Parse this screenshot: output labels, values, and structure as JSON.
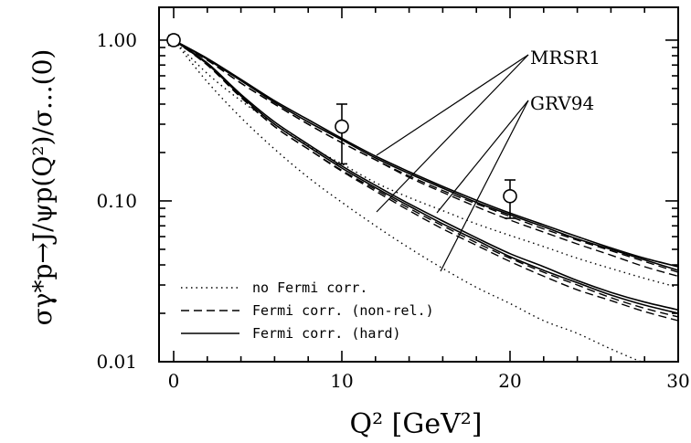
{
  "chart_data": {
    "type": "line",
    "xlabel": "Q² [GeV²]",
    "ylabel": "σγ*p→J/ψp(Q²)/σ...(0)",
    "xlim": [
      0,
      30
    ],
    "ylim": [
      0.01,
      1.6
    ],
    "yscale": "log",
    "xticks": [
      "0",
      "10",
      "20",
      "30"
    ],
    "yticks": [
      "0.01",
      "0.10",
      "1.00"
    ],
    "legend": {
      "placement": "bottom-left",
      "entries": [
        {
          "label": "no Fermi corr.",
          "style": "dotted"
        },
        {
          "label": "Fermi corr. (non-rel.)",
          "style": "dashed"
        },
        {
          "label": "Fermi corr. (hard)",
          "style": "solid"
        }
      ]
    },
    "annotations": [
      {
        "label": "MRSR1"
      },
      {
        "label": "GRV94"
      }
    ],
    "series": [
      {
        "group": "MRSR1",
        "style": "dotted",
        "x": [
          0,
          2,
          4,
          6,
          8,
          10,
          12,
          14,
          16,
          18,
          20,
          22,
          24,
          26,
          28,
          30
        ],
        "y": [
          1.0,
          0.62,
          0.42,
          0.3,
          0.22,
          0.17,
          0.13,
          0.105,
          0.087,
          0.072,
          0.061,
          0.052,
          0.044,
          0.038,
          0.033,
          0.029
        ]
      },
      {
        "group": "MRSR1",
        "style": "dashed",
        "x": [
          0,
          2,
          4,
          6,
          8,
          10,
          12,
          14,
          16,
          18,
          20,
          22,
          24,
          26,
          28,
          30
        ],
        "y": [
          1.0,
          0.75,
          0.54,
          0.4,
          0.3,
          0.23,
          0.18,
          0.143,
          0.116,
          0.096,
          0.08,
          0.067,
          0.057,
          0.049,
          0.042,
          0.036
        ]
      },
      {
        "group": "MRSR1",
        "style": "dashed",
        "x": [
          0,
          2,
          4,
          6,
          8,
          10,
          12,
          14,
          16,
          18,
          20,
          22,
          24,
          26,
          28,
          30
        ],
        "y": [
          1.0,
          0.75,
          0.54,
          0.4,
          0.3,
          0.23,
          0.18,
          0.14,
          0.113,
          0.092,
          0.076,
          0.064,
          0.054,
          0.046,
          0.039,
          0.034
        ]
      },
      {
        "group": "MRSR1",
        "style": "solid",
        "x": [
          0,
          2,
          4,
          6,
          8,
          10,
          12,
          14,
          16,
          18,
          20,
          22,
          24,
          26,
          28,
          30
        ],
        "y": [
          1.0,
          0.77,
          0.57,
          0.42,
          0.32,
          0.245,
          0.19,
          0.152,
          0.123,
          0.101,
          0.084,
          0.071,
          0.06,
          0.051,
          0.044,
          0.039
        ]
      },
      {
        "group": "MRSR1",
        "style": "solid",
        "x": [
          0,
          2,
          4,
          6,
          8,
          10,
          12,
          14,
          16,
          18,
          20,
          22,
          24,
          26,
          28,
          30
        ],
        "y": [
          1.0,
          0.76,
          0.56,
          0.41,
          0.31,
          0.24,
          0.185,
          0.148,
          0.12,
          0.098,
          0.082,
          0.069,
          0.058,
          0.05,
          0.043,
          0.037
        ]
      },
      {
        "group": "GRV94",
        "style": "dotted",
        "x": [
          0,
          2,
          4,
          6,
          8,
          10,
          12,
          14,
          16,
          18,
          20,
          22,
          24,
          26,
          28,
          30
        ],
        "y": [
          1.0,
          0.55,
          0.33,
          0.21,
          0.14,
          0.098,
          0.07,
          0.051,
          0.038,
          0.029,
          0.023,
          0.018,
          0.015,
          0.012,
          0.0098,
          0.0082
        ]
      },
      {
        "group": "GRV94",
        "style": "dashed",
        "x": [
          0,
          2,
          4,
          6,
          8,
          10,
          12,
          14,
          16,
          18,
          20,
          22,
          24,
          26,
          28,
          30
        ],
        "y": [
          1.0,
          0.7,
          0.44,
          0.29,
          0.21,
          0.155,
          0.118,
          0.09,
          0.07,
          0.055,
          0.044,
          0.036,
          0.03,
          0.025,
          0.0215,
          0.019
        ]
      },
      {
        "group": "GRV94",
        "style": "dashed",
        "x": [
          0,
          2,
          4,
          6,
          8,
          10,
          12,
          14,
          16,
          18,
          20,
          22,
          24,
          26,
          28,
          30
        ],
        "y": [
          1.0,
          0.7,
          0.44,
          0.29,
          0.21,
          0.153,
          0.115,
          0.087,
          0.067,
          0.053,
          0.042,
          0.034,
          0.028,
          0.024,
          0.0205,
          0.018
        ]
      },
      {
        "group": "GRV94",
        "style": "solid",
        "x": [
          0,
          2,
          4,
          6,
          8,
          10,
          12,
          14,
          16,
          18,
          20,
          22,
          24,
          26,
          28,
          30
        ],
        "y": [
          1.0,
          0.72,
          0.46,
          0.31,
          0.225,
          0.165,
          0.125,
          0.096,
          0.075,
          0.059,
          0.047,
          0.039,
          0.032,
          0.027,
          0.0235,
          0.021
        ]
      },
      {
        "group": "GRV94",
        "style": "solid",
        "x": [
          0,
          2,
          4,
          6,
          8,
          10,
          12,
          14,
          16,
          18,
          20,
          22,
          24,
          26,
          28,
          30
        ],
        "y": [
          1.0,
          0.71,
          0.45,
          0.3,
          0.218,
          0.16,
          0.121,
          0.093,
          0.072,
          0.057,
          0.045,
          0.037,
          0.031,
          0.026,
          0.0225,
          0.02
        ]
      }
    ],
    "data_points": [
      {
        "x": 0,
        "y": 1.0,
        "y_low": 0.93,
        "y_high": 1.07
      },
      {
        "x": 10,
        "y": 0.29,
        "y_low": 0.17,
        "y_high": 0.4
      },
      {
        "x": 20,
        "y": 0.107,
        "y_low": 0.078,
        "y_high": 0.135
      }
    ]
  }
}
